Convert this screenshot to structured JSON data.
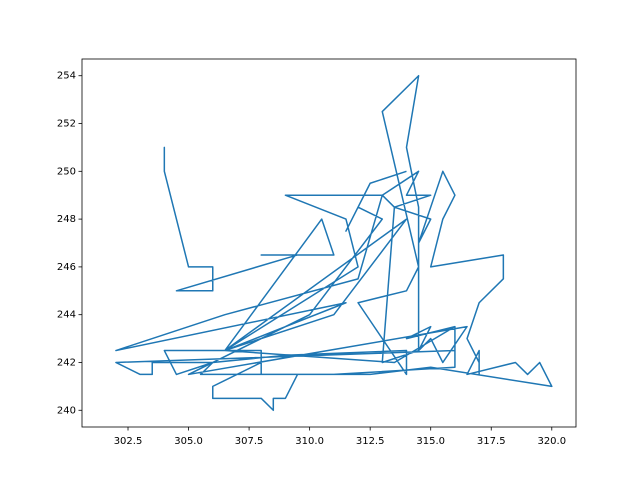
{
  "chart_data": {
    "type": "line",
    "x": [
      304,
      304,
      304,
      304,
      305,
      306,
      306,
      304.5,
      309.5,
      310,
      308,
      311,
      310.5,
      306.5,
      312,
      311.5,
      309,
      313,
      314.5,
      314,
      315,
      313.5,
      315,
      314.5,
      315.5,
      316,
      315.5,
      315,
      318,
      318,
      317,
      316.5,
      317,
      317,
      317,
      316.5,
      318.5,
      319,
      319.5,
      320,
      315,
      312.5,
      308,
      308,
      306,
      306,
      308,
      308.5,
      308.5,
      309,
      309.5,
      311,
      316,
      316,
      313.5,
      306.5,
      311,
      314,
      306.5,
      311.5,
      302,
      306.5,
      312,
      313,
      313.5,
      313,
      314.5,
      315,
      314,
      316,
      316,
      302,
      303,
      303.5,
      303.5,
      306,
      305.5,
      308,
      308,
      304,
      304.5,
      306,
      309,
      314,
      314,
      312,
      314,
      314.5,
      313,
      314.5,
      314,
      314.5,
      314.5,
      315,
      315.5,
      316.5,
      305,
      310,
      313,
      312,
      311.5,
      312.5,
      314
    ],
    "series": [
      {
        "color": "#1f77b4",
        "values": [
          251,
          250.4,
          251,
          250,
          246,
          246,
          245,
          245,
          246.5,
          246.5,
          246.5,
          246.5,
          248,
          242.5,
          246,
          248,
          249,
          249,
          250,
          249,
          249,
          248.5,
          248,
          247,
          250,
          249,
          248,
          246,
          246.5,
          245.5,
          244.5,
          243,
          242,
          241.5,
          242.5,
          241.5,
          242,
          241.5,
          242,
          241,
          241.8,
          241.5,
          241.5,
          242,
          241,
          240.5,
          240.5,
          240,
          240.5,
          240.5,
          241.5,
          241.5,
          241.8,
          243.5,
          242,
          242.5,
          244,
          248,
          242.5,
          244.5,
          242.5,
          244,
          245.5,
          249,
          248.5,
          242,
          242.5,
          243.5,
          243,
          243.5,
          242.5,
          242,
          241.5,
          241.5,
          242,
          242,
          241.5,
          241.5,
          242.5,
          242.5,
          241.5,
          242,
          242.3,
          242.5,
          241.5,
          244.5,
          245,
          246,
          252.5,
          254,
          251,
          248.5,
          242.5,
          243,
          242,
          243.5,
          241.5,
          244,
          248,
          248.5,
          247.5,
          249.5,
          250
        ]
      }
    ],
    "xlim": [
      300.6,
      321.0
    ],
    "ylim": [
      239.3,
      254.7
    ],
    "xticks": [
      {
        "value": 302.5,
        "label": "302.5"
      },
      {
        "value": 305,
        "label": "305.0"
      },
      {
        "value": 307.5,
        "label": "307.5"
      },
      {
        "value": 310,
        "label": "310.0"
      },
      {
        "value": 312.5,
        "label": "312.5"
      },
      {
        "value": 315,
        "label": "315.0"
      },
      {
        "value": 317.5,
        "label": "317.5"
      },
      {
        "value": 320,
        "label": "320.0"
      }
    ],
    "yticks": [
      240,
      242,
      244,
      246,
      248,
      250,
      252,
      254
    ]
  }
}
